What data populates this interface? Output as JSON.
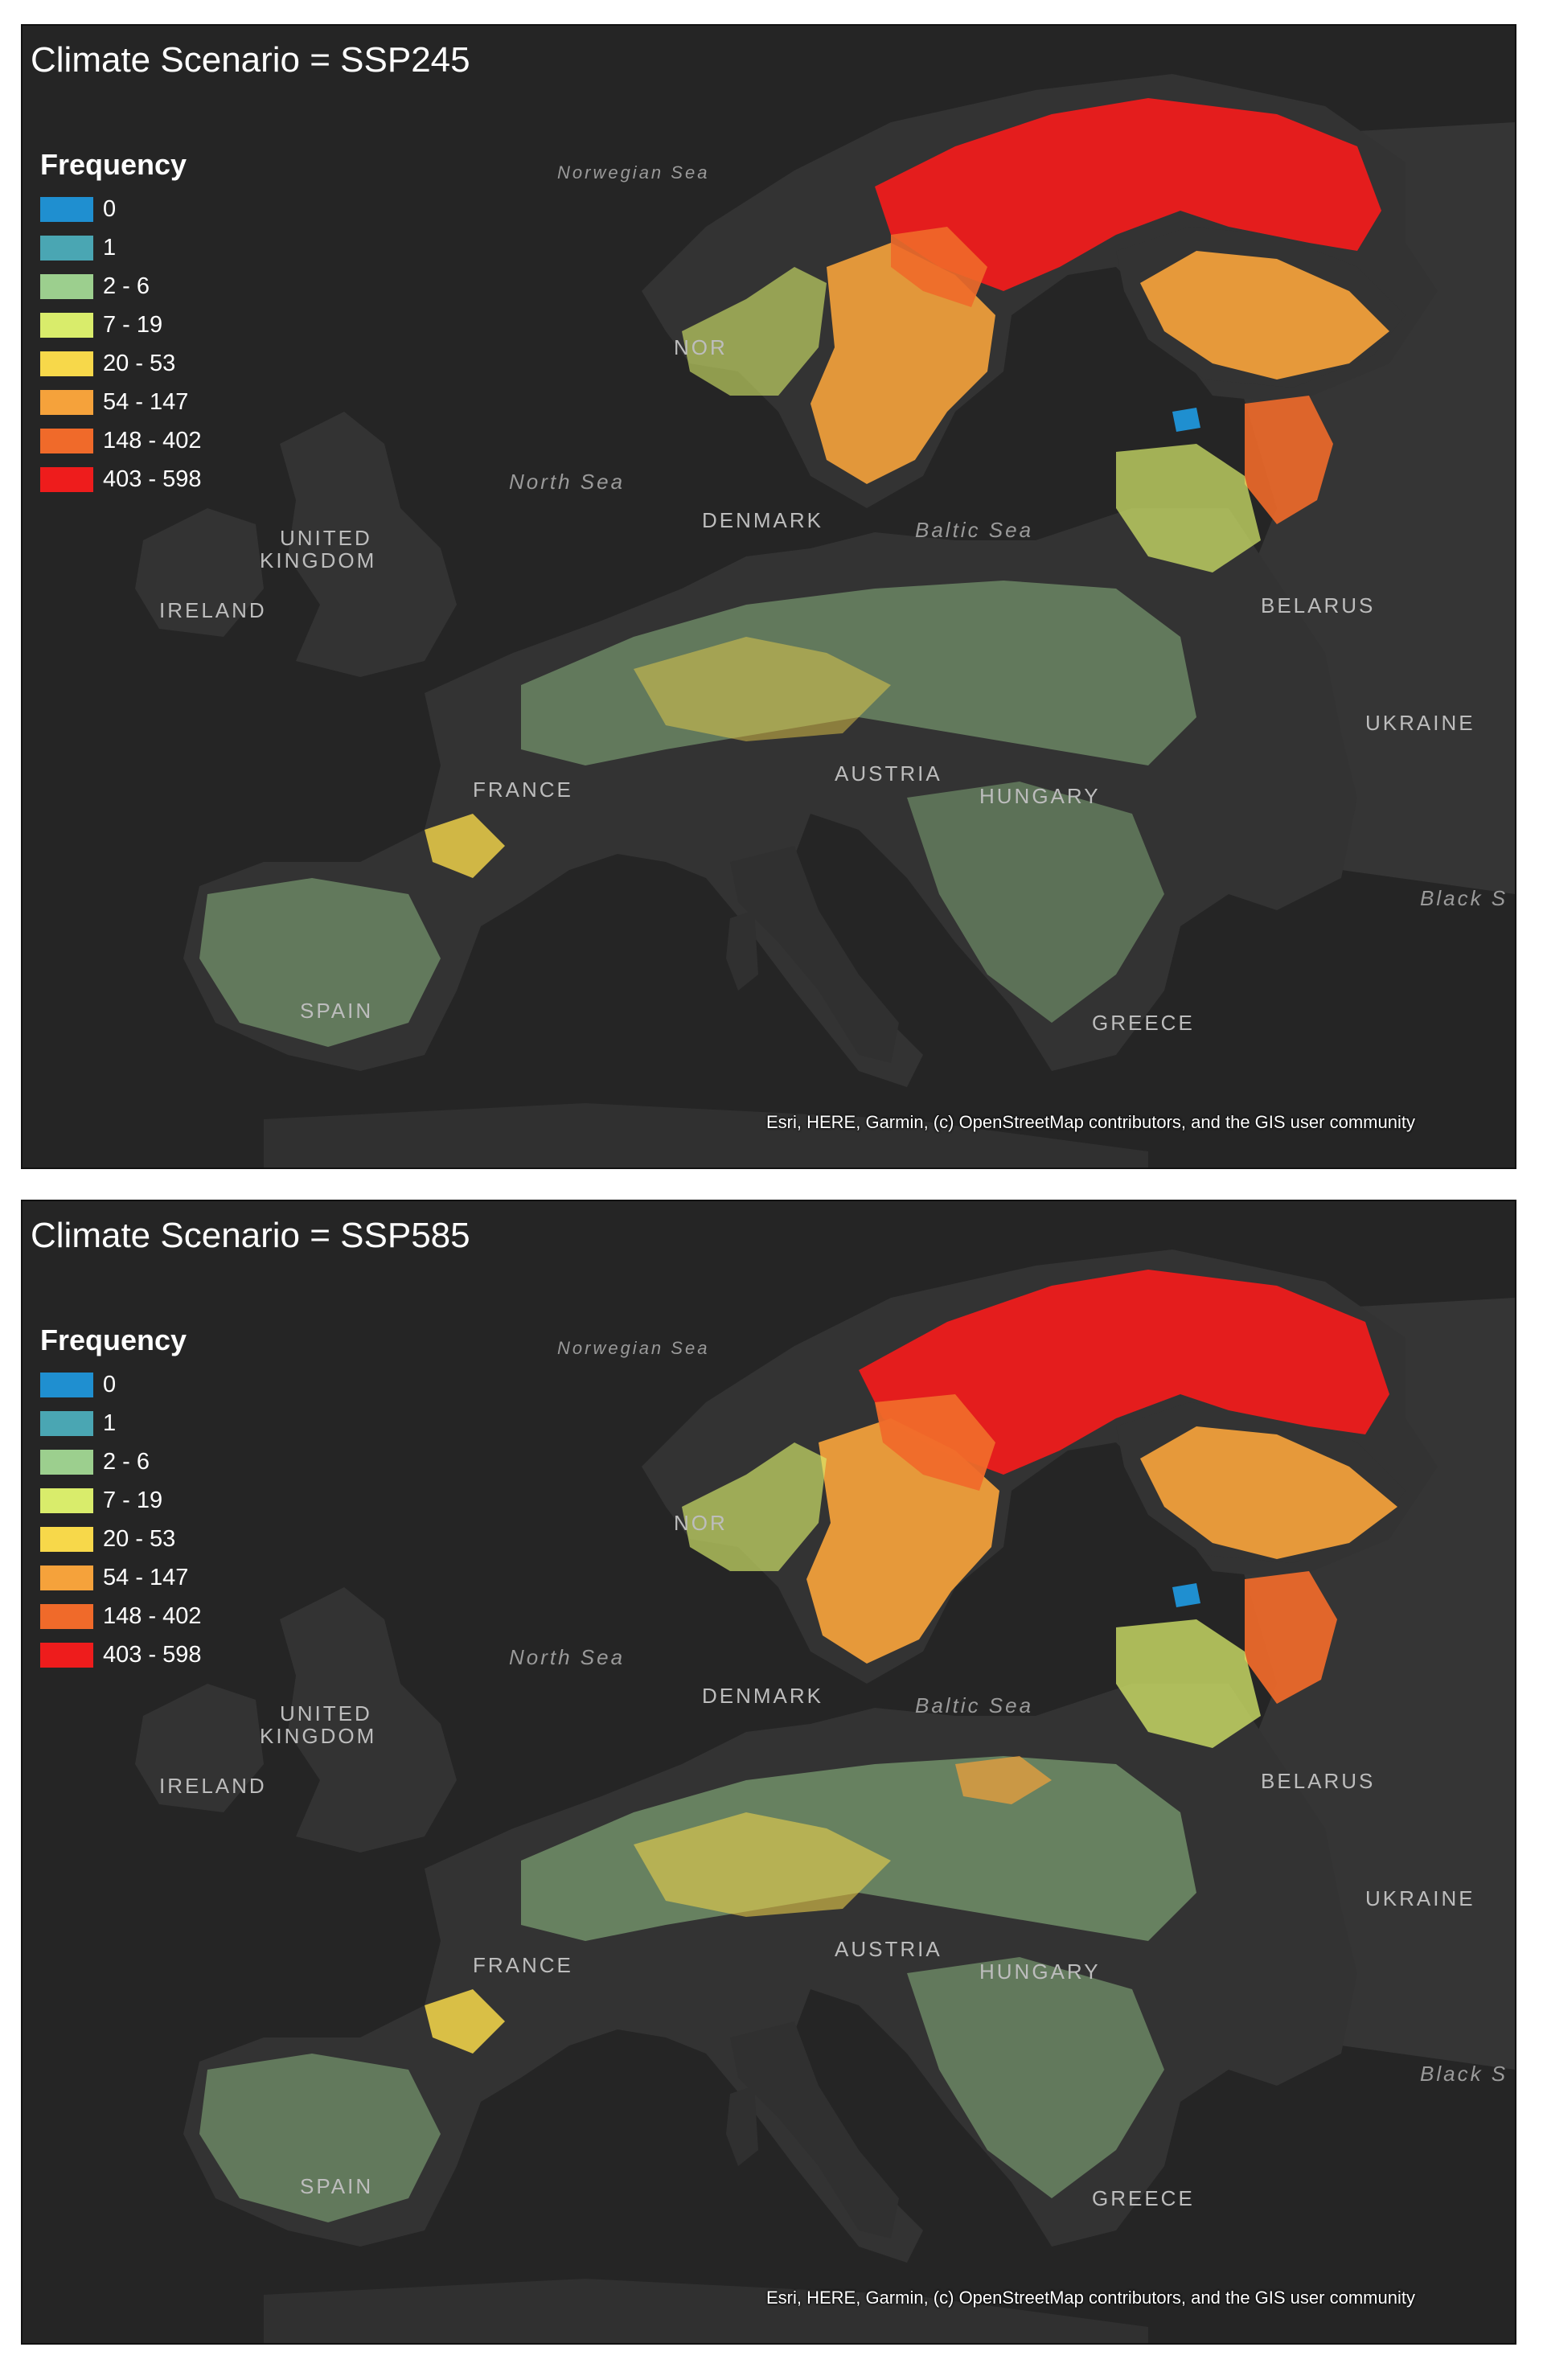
{
  "maps": [
    {
      "title": "Climate Scenario = SSP245",
      "legend": {
        "title": "Frequency",
        "classes": [
          {
            "label": "0",
            "color": "#1f8fd0"
          },
          {
            "label": "1",
            "color": "#4aa6b3"
          },
          {
            "label": "2 - 6",
            "color": "#9ccf8e"
          },
          {
            "label": "7 - 19",
            "color": "#d9ec6b"
          },
          {
            "label": "20 - 53",
            "color": "#f7d84a"
          },
          {
            "label": "54 - 147",
            "color": "#f5a23b"
          },
          {
            "label": "148 - 402",
            "color": "#f06a2a"
          },
          {
            "label": "403 - 598",
            "color": "#ee1c1c"
          }
        ]
      },
      "place_labels": {
        "norwegian_sea": "Norwegian Sea",
        "norway": "NOR",
        "north_sea": "North Sea",
        "denmark": "DENMARK",
        "baltic_sea": "Baltic Sea",
        "uk_line1": "UNITED",
        "uk_line2": "KINGDOM",
        "ireland": "IRELAND",
        "belarus": "BELARUS",
        "ukraine": "UKRAINE",
        "france": "FRANCE",
        "austria": "AUSTRIA",
        "hungary": "HUNGARY",
        "black_sea": "Black S",
        "spain": "SPAIN",
        "greece": "GREECE"
      },
      "attribution": "Esri, HERE, Garmin, (c) OpenStreetMap contributors, and the GIS user community"
    },
    {
      "title": "Climate Scenario = SSP585",
      "legend": {
        "title": "Frequency",
        "classes": [
          {
            "label": "0",
            "color": "#1f8fd0"
          },
          {
            "label": "1",
            "color": "#4aa6b3"
          },
          {
            "label": "2 - 6",
            "color": "#9ccf8e"
          },
          {
            "label": "7 - 19",
            "color": "#d9ec6b"
          },
          {
            "label": "20 - 53",
            "color": "#f7d84a"
          },
          {
            "label": "54 - 147",
            "color": "#f5a23b"
          },
          {
            "label": "148 - 402",
            "color": "#f06a2a"
          },
          {
            "label": "403 - 598",
            "color": "#ee1c1c"
          }
        ]
      },
      "place_labels": {
        "norwegian_sea": "Norwegian Sea",
        "norway": "NOR",
        "north_sea": "North Sea",
        "denmark": "DENMARK",
        "baltic_sea": "Baltic Sea",
        "uk_line1": "UNITED",
        "uk_line2": "KINGDOM",
        "ireland": "IRELAND",
        "belarus": "BELARUS",
        "ukraine": "UKRAINE",
        "france": "FRANCE",
        "austria": "AUSTRIA",
        "hungary": "HUNGARY",
        "black_sea": "Black S",
        "spain": "SPAIN",
        "greece": "GREECE"
      },
      "attribution": "Esri, HERE, Garmin, (c) OpenStreetMap contributors, and the GIS user community"
    }
  ]
}
